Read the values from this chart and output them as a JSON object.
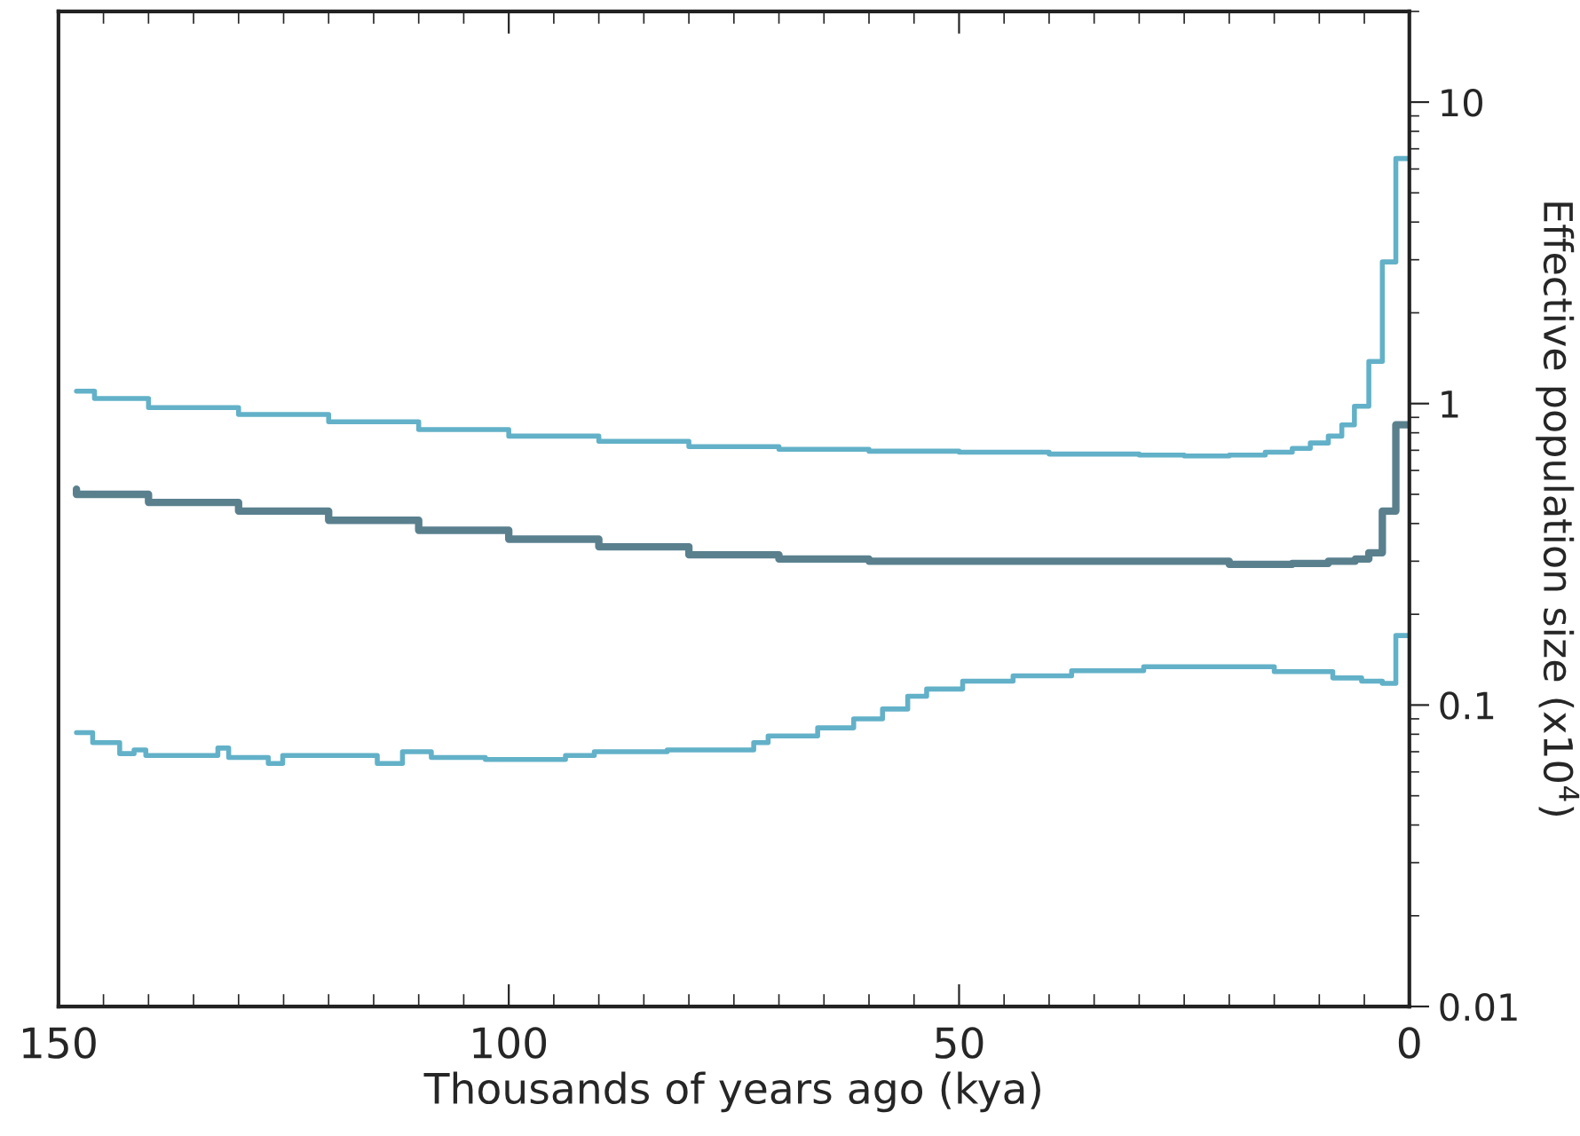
{
  "chart_data": {
    "type": "step",
    "xlabel": "Thousands of years ago (kya)",
    "ylabel": "Effective population size (x10$^{4}$)",
    "xlim": [
      150,
      0
    ],
    "xticks": [
      150,
      100,
      50,
      0
    ],
    "ylim": [
      0.01,
      20
    ],
    "yticks": [
      0.01,
      0.1,
      1,
      10
    ],
    "log": "y",
    "grid": false,
    "legend": false,
    "line_style": "solid",
    "marker": "none",
    "series": [
      {
        "color": "#62b1c8",
        "x": [
          0,
          1.5,
          3.0,
          4.5,
          6.1,
          7.5,
          9,
          11,
          13,
          16,
          20,
          25,
          30,
          40,
          50,
          60,
          70,
          80,
          90,
          100,
          110,
          120,
          130,
          140,
          146,
          148
        ],
        "values": [
          6.5,
          2.95,
          1.38,
          0.98,
          0.85,
          0.78,
          0.74,
          0.71,
          0.69,
          0.675,
          0.67,
          0.675,
          0.68,
          0.69,
          0.695,
          0.705,
          0.72,
          0.75,
          0.78,
          0.82,
          0.87,
          0.92,
          0.97,
          1.04,
          1.1,
          1.1
        ]
      },
      {
        "color": "#5a808e",
        "x": [
          0,
          1.5,
          3.0,
          4.5,
          6,
          9,
          13,
          20,
          30,
          40,
          50,
          60,
          70,
          80,
          90,
          100,
          110,
          120,
          130,
          140,
          148
        ],
        "values": [
          0.85,
          0.44,
          0.32,
          0.305,
          0.3,
          0.295,
          0.293,
          0.3,
          0.3,
          0.3,
          0.3,
          0.305,
          0.315,
          0.335,
          0.355,
          0.38,
          0.41,
          0.44,
          0.47,
          0.5,
          0.52
        ]
      },
      {
        "color": "#62b1c8",
        "x": [
          0,
          1.5,
          3,
          5.3,
          8.5,
          15,
          29.5,
          37.5,
          44,
          49.6,
          53.6,
          55.7,
          58.5,
          61.7,
          65.7,
          71.2,
          72.8,
          82.4,
          90.5,
          93.7,
          102.6,
          108.6,
          111.8,
          114.6,
          125.1,
          126.7,
          131.1,
          132.3,
          140.3,
          141.6,
          143.2,
          146.2,
          148
        ],
        "values": [
          0.17,
          0.118,
          0.12,
          0.123,
          0.129,
          0.134,
          0.13,
          0.125,
          0.12,
          0.113,
          0.107,
          0.097,
          0.09,
          0.084,
          0.079,
          0.075,
          0.071,
          0.07,
          0.068,
          0.066,
          0.067,
          0.07,
          0.064,
          0.068,
          0.064,
          0.067,
          0.072,
          0.068,
          0.071,
          0.069,
          0.075,
          0.081,
          0.081
        ]
      }
    ]
  }
}
